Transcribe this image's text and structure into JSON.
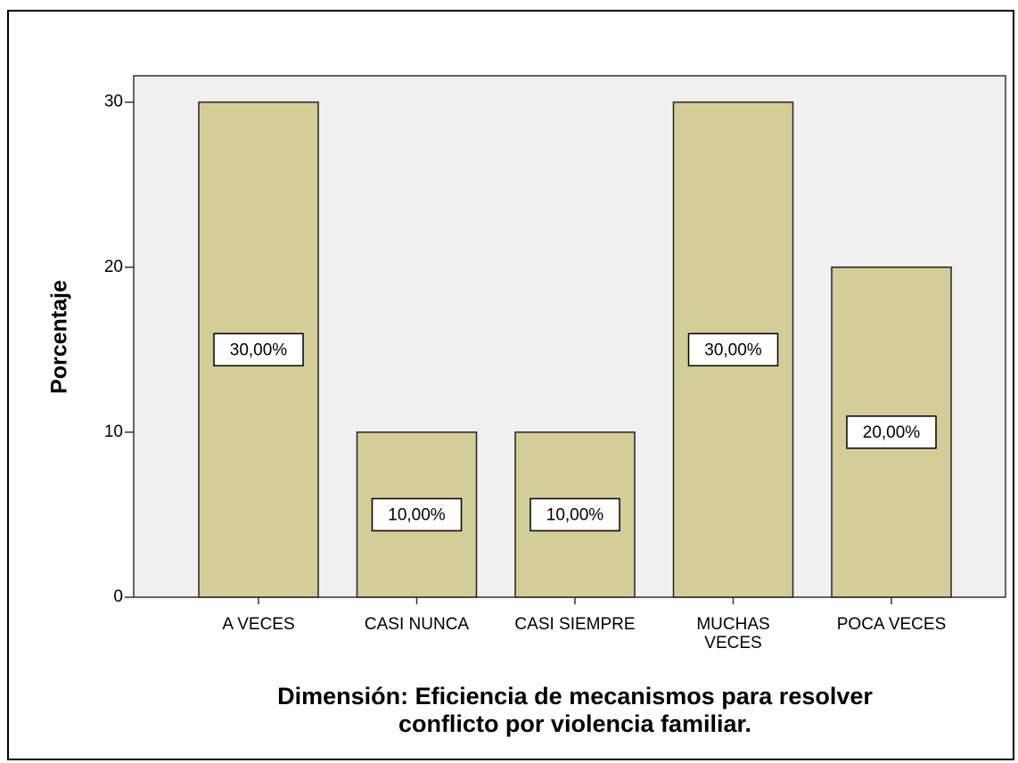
{
  "chart_data": {
    "type": "bar",
    "title": "Dimensión: Eficiencia de mecanismos para resolver\nconflicto por violencia familiar.",
    "ylabel": "Porcentaje",
    "categories": [
      "A VECES",
      "CASI NUNCA",
      "CASI SIEMPRE",
      "MUCHAS\nVECES",
      "POCA VECES"
    ],
    "values": [
      30,
      10,
      10,
      30,
      20
    ],
    "value_labels": [
      "30,00%",
      "10,00%",
      "10,00%",
      "30,00%",
      "20,00%"
    ],
    "color": "#d3ce97",
    "ylim": [
      0,
      31.6
    ],
    "yticks": [
      0,
      10,
      20,
      30
    ],
    "grid": false
  }
}
